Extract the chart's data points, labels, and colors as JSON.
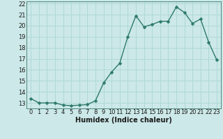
{
  "x": [
    0,
    1,
    2,
    3,
    4,
    5,
    6,
    7,
    8,
    9,
    10,
    11,
    12,
    13,
    14,
    15,
    16,
    17,
    18,
    19,
    20,
    21,
    22,
    23
  ],
  "y": [
    13.4,
    13.0,
    13.0,
    13.0,
    12.8,
    12.75,
    12.8,
    12.85,
    13.2,
    14.8,
    15.8,
    16.6,
    19.0,
    20.9,
    19.9,
    20.1,
    20.4,
    20.4,
    21.7,
    21.2,
    20.2,
    20.6,
    18.5,
    16.9
  ],
  "xlabel": "Humidex (Indice chaleur)",
  "xlim_min": -0.5,
  "xlim_max": 23.5,
  "ylim_min": 12.5,
  "ylim_max": 22.2,
  "yticks": [
    13,
    14,
    15,
    16,
    17,
    18,
    19,
    20,
    21,
    22
  ],
  "xticks": [
    0,
    1,
    2,
    3,
    4,
    5,
    6,
    7,
    8,
    9,
    10,
    11,
    12,
    13,
    14,
    15,
    16,
    17,
    18,
    19,
    20,
    21,
    22,
    23
  ],
  "xtick_labels": [
    "0",
    "1",
    "2",
    "3",
    "4",
    "5",
    "6",
    "7",
    "8",
    "9",
    "10",
    "11",
    "12",
    "13",
    "14",
    "15",
    "16",
    "17",
    "18",
    "19",
    "20",
    "21",
    "22",
    "23"
  ],
  "line_color": "#2d7a6a",
  "marker_color": "#2d7a6a",
  "bg_color": "#cce8e8",
  "grid_color": "#b0d8d8",
  "xlabel_fontsize": 7,
  "tick_fontsize": 6,
  "linewidth": 1.0,
  "markersize": 2.5
}
